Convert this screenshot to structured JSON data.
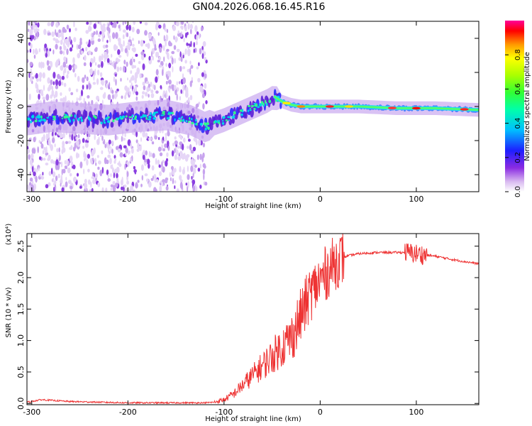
{
  "title": "GN04.2026.068.16.45.R16",
  "chart_data": [
    {
      "type": "heatmap",
      "name": "spectrogram",
      "xlabel": "Height of straight line (km)",
      "ylabel": "Frequency (Hz)",
      "xlim": [
        -305,
        165
      ],
      "ylim": [
        -50,
        50
      ],
      "xticks": [
        -300,
        -200,
        -100,
        0,
        100
      ],
      "xtick_labels": [
        "-300",
        "-200",
        "-100",
        "0",
        "100"
      ],
      "yticks": [
        -40,
        -20,
        0,
        20,
        40
      ],
      "ytick_labels": [
        "-40",
        "-20",
        "0",
        "20",
        "40"
      ],
      "ridge": {
        "x": [
          -305,
          -280,
          -250,
          -220,
          -190,
          -160,
          -135,
          -120,
          -100,
          -80,
          -60,
          -52,
          -48,
          -40,
          -30,
          -20,
          0,
          40,
          80,
          100,
          120,
          165
        ],
        "y": [
          -8,
          -6,
          -7,
          -8,
          -6,
          -5,
          -8,
          -12,
          -8,
          -3,
          2,
          4,
          6,
          3,
          1,
          0,
          0,
          0,
          -1,
          -1,
          -1,
          -2
        ]
      },
      "colorbar": {
        "label": "Normalized spectral amplitude",
        "range": [
          0,
          1
        ],
        "ticks": [
          0.0,
          0.2,
          0.4,
          0.6,
          0.8
        ],
        "tick_labels": [
          "0.0",
          "0.2",
          "0.4",
          "0.6",
          "0.8"
        ]
      }
    },
    {
      "type": "line",
      "name": "snr",
      "xlabel": "Height of straight line (km)",
      "ylabel": "SNR (10 * v/v)",
      "multiplier": "(x10⁴)",
      "xlim": [
        -305,
        165
      ],
      "ylim": [
        -0.02,
        2.7
      ],
      "xticks": [
        -300,
        -200,
        -100,
        0,
        100
      ],
      "xtick_labels": [
        "-300",
        "-200",
        "-100",
        "0",
        "100"
      ],
      "yticks": [
        0.0,
        0.5,
        1.0,
        1.5,
        2.0,
        2.5
      ],
      "ytick_labels": [
        "0.0",
        "0.5",
        "1.0",
        "1.5",
        "2.0",
        "2.5"
      ],
      "color": "#ee3333",
      "envelope": {
        "x": [
          -305,
          -290,
          -280,
          -260,
          -200,
          -150,
          -120,
          -110,
          -100,
          -90,
          -80,
          -70,
          -60,
          -50,
          -40,
          -30,
          -25,
          -20,
          -10,
          0,
          10,
          20,
          30,
          40,
          60,
          80,
          90,
          100,
          110,
          120,
          140,
          165
        ],
        "y": [
          0.02,
          0.06,
          0.05,
          0.03,
          0.01,
          0.01,
          0.01,
          0.02,
          0.06,
          0.15,
          0.3,
          0.45,
          0.6,
          0.75,
          0.9,
          1.05,
          1.2,
          1.4,
          1.75,
          1.95,
          2.15,
          2.3,
          2.35,
          2.38,
          2.4,
          2.4,
          2.4,
          2.38,
          2.36,
          2.34,
          2.28,
          2.22
        ]
      }
    }
  ]
}
